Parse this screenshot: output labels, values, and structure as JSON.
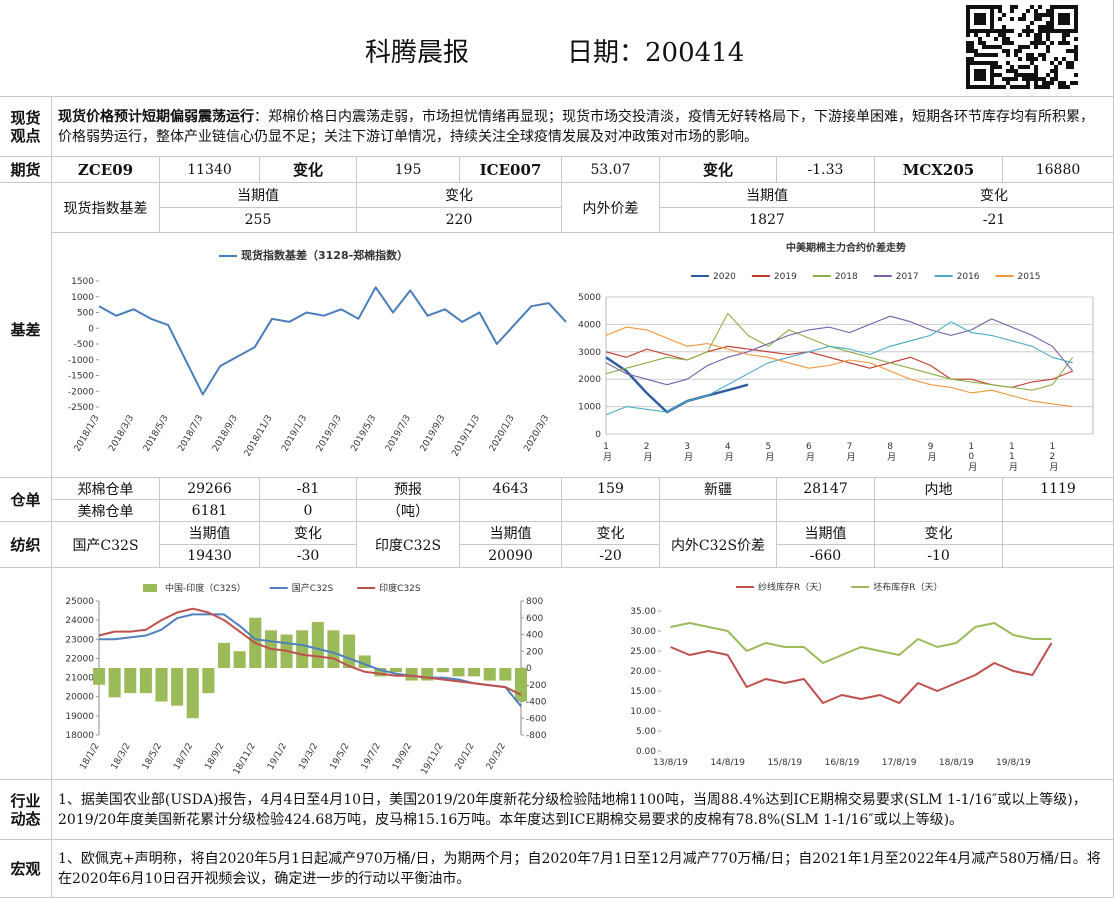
{
  "header": {
    "title": "科腾晨报",
    "date": "日期：200414"
  },
  "spot_view": {
    "label": "现货观点",
    "headline": "现货价格预计短期偏弱震荡运行",
    "text": "：郑棉价格日内震荡走弱，市场担忧情绪再显现；现货市场交投清淡，疫情无好转格局下，下游接单困难，短期各环节库存均有所积累，价格弱势运行，整体产业链信心仍显不足；关注下游订单情况，持续关注全球疫情发展及对冲政策对市场的影响。"
  },
  "futures": {
    "label": "期货",
    "cells": [
      "ZCE09",
      11340,
      "变化",
      195,
      "ICE007",
      53.07,
      "变化",
      -1.33,
      "MCX205",
      16880
    ]
  },
  "basis_table": {
    "label": "基差",
    "rows": [
      [
        "现货指数基差",
        "当期值",
        "变化",
        "内外价差",
        "当期值",
        "变化"
      ],
      [
        255,
        220,
        1827,
        -21
      ]
    ]
  },
  "warehouse": {
    "label": "仓单",
    "rows": [
      [
        "郑棉仓单",
        29266,
        -81,
        "预报",
        4643,
        159,
        "新疆",
        28147,
        "内地",
        1119
      ],
      [
        "美棉仓单",
        6181,
        0,
        "（吨）"
      ]
    ]
  },
  "textile": {
    "label": "纺织",
    "rows": [
      [
        "国产C32S",
        "当期值",
        "变化",
        "印度C32S",
        "当期值",
        "变化",
        "内外C32S价差",
        "当期值",
        "变化"
      ],
      [
        19430,
        -30,
        20090,
        -20,
        -660,
        -10
      ]
    ]
  },
  "industry": {
    "label": "行业动态",
    "text": "1、据美国农业部(USDA)报告，4月4日至4月10日，美国2019/20年度新花分级检验陆地棉1100吨，当周88.4%达到ICE期棉交易要求(SLM 1-1/16″或以上等级)，2019/20年度美国新花累计分级检验424.68万吨，皮马棉15.16万吨。本年度达到ICE期棉交易要求的皮棉有78.8%(SLM 1-1/16″或以上等级)。"
  },
  "macro": {
    "label": "宏观",
    "text": "1、欧佩克+声明称，将自2020年5月1日起减产970万桶/日，为期两个月；自2020年7月1日至12月减产770万桶/日；自2021年1月至2022年4月减产580万桶/日。将在2020年6月10日召开视频会议，确定进一步的行动以平衡油市。"
  },
  "chart_data": [
    {
      "type": "line",
      "legend": "top",
      "categories": [
        "2018/1/3",
        null,
        "2018/3/3",
        null,
        "2018/5/3",
        null,
        "2018/7/3",
        null,
        "2018/9/3",
        null,
        "2018/11/3",
        null,
        "2019/1/3",
        null,
        "2019/3/3",
        null,
        "2019/5/3",
        null,
        "2019/7/3",
        null,
        "2019/9/3",
        null,
        "2019/11/3",
        null,
        "2020/1/3",
        null,
        "2020/3/3",
        null
      ],
      "series": [
        {
          "name": "现货指数基差（3128-郑棉指数）",
          "color": "#4a7ebb",
          "values": [
            700,
            400,
            600,
            300,
            100,
            -1000,
            -2100,
            -1200,
            -900,
            -600,
            300,
            200,
            500,
            400,
            600,
            300,
            1300,
            500,
            1200,
            400,
            600,
            200,
            500,
            -500,
            100,
            700,
            800,
            200
          ]
        }
      ],
      "ylim": [
        -2500,
        1500
      ],
      "yticks": [
        -2500,
        -2000,
        -1500,
        -1000,
        -500,
        0,
        500,
        1000,
        1500
      ],
      "grid": false
    },
    {
      "type": "line",
      "title": "中美期棉主力合约价差走势",
      "legend": "top",
      "categories": [
        "1月",
        null,
        "2月",
        null,
        "3月",
        null,
        "4月",
        null,
        "5月",
        null,
        "6月",
        null,
        "7月",
        null,
        "8月",
        null,
        "9月",
        null,
        "10月",
        null,
        "11月",
        null,
        "12月",
        null
      ],
      "series": [
        {
          "name": "2020",
          "color": "#2e5e9e",
          "values": [
            2800,
            2300,
            1500,
            800,
            1200,
            1400,
            1600,
            1800,
            null,
            null,
            null,
            null,
            null,
            null,
            null,
            null,
            null,
            null,
            null,
            null,
            null,
            null,
            null,
            null
          ]
        },
        {
          "name": "2019",
          "color": "#c0392b",
          "values": [
            3000,
            2800,
            3100,
            2900,
            2700,
            3000,
            3200,
            3100,
            3000,
            2900,
            3000,
            2800,
            2600,
            2400,
            2600,
            2800,
            2500,
            2000,
            2000,
            1800,
            1700,
            1900,
            2000,
            2300
          ]
        },
        {
          "name": "2018",
          "color": "#8db04a",
          "values": [
            2200,
            2400,
            2600,
            2800,
            2700,
            3000,
            4400,
            3600,
            3200,
            3800,
            3500,
            3200,
            3000,
            2800,
            2600,
            2400,
            2200,
            2000,
            1900,
            1800,
            1700,
            1600,
            1800,
            2800
          ]
        },
        {
          "name": "2017",
          "color": "#7a5ca8",
          "values": [
            2600,
            2200,
            2000,
            1800,
            2000,
            2500,
            2800,
            3000,
            3300,
            3600,
            3800,
            3900,
            3700,
            4000,
            4300,
            4100,
            3800,
            3600,
            3800,
            4200,
            3900,
            3600,
            3200,
            2300
          ]
        },
        {
          "name": "2016",
          "color": "#4bacc6",
          "values": [
            700,
            1000,
            900,
            800,
            1200,
            1400,
            1800,
            2200,
            2600,
            2800,
            3000,
            3200,
            3100,
            2900,
            3200,
            3400,
            3600,
            4100,
            3700,
            3600,
            3400,
            3200,
            2800,
            2600
          ]
        },
        {
          "name": "2015",
          "color": "#f0953a",
          "values": [
            3600,
            3900,
            3800,
            3500,
            3200,
            3300,
            3100,
            2900,
            2800,
            2600,
            2400,
            2500,
            2700,
            2600,
            2300,
            2000,
            1800,
            1700,
            1500,
            1600,
            1400,
            1200,
            1100,
            1000
          ]
        }
      ],
      "ylim": [
        0,
        5000
      ],
      "yticks": [
        0,
        1000,
        2000,
        3000,
        4000,
        5000
      ],
      "grid": true
    },
    {
      "type": "combo",
      "legend": "top",
      "categories": [
        "18/1/2",
        null,
        "18/3/2",
        null,
        "18/5/2",
        null,
        "18/7/2",
        null,
        "18/9/2",
        null,
        "18/11/2",
        null,
        "19/1/2",
        null,
        "19/3/2",
        null,
        "19/5/2",
        null,
        "19/7/2",
        null,
        "19/9/2",
        null,
        "19/11/2",
        null,
        "20/1/2",
        null,
        "20/3/2",
        null
      ],
      "series": [
        {
          "name": "中国-印度（C32S）",
          "type": "bar",
          "axis": "y2",
          "color": "#9bbb59",
          "values": [
            -200,
            -350,
            -300,
            -300,
            -400,
            -450,
            -600,
            -300,
            300,
            200,
            600,
            450,
            400,
            450,
            550,
            450,
            400,
            150,
            -100,
            -50,
            -150,
            -150,
            -50,
            -100,
            -100,
            -150,
            -150,
            -400
          ]
        },
        {
          "name": "国产C32S",
          "type": "line",
          "color": "#4f81bd",
          "values": [
            23000,
            23000,
            23100,
            23200,
            23500,
            24100,
            24300,
            24300,
            24300,
            23700,
            23000,
            22900,
            22800,
            22700,
            22500,
            22300,
            22000,
            21700,
            21400,
            21200,
            21100,
            21000,
            21000,
            20900,
            20700,
            20600,
            20500,
            19500
          ]
        },
        {
          "name": "印度C32S",
          "type": "line",
          "color": "#c0504d",
          "values": [
            23200,
            23400,
            23400,
            23500,
            24000,
            24400,
            24600,
            24400,
            24000,
            23400,
            22800,
            22500,
            22400,
            22200,
            22100,
            22000,
            21600,
            21300,
            21200,
            21100,
            21100,
            21000,
            20900,
            20800,
            20700,
            20600,
            20500,
            20100
          ]
        }
      ],
      "ylim": [
        18000,
        25000
      ],
      "yticks": [
        18000,
        19000,
        20000,
        21000,
        22000,
        23000,
        24000,
        25000
      ],
      "y2lim": [
        -800,
        800
      ],
      "y2ticks": [
        -800,
        -600,
        -400,
        -200,
        0,
        200,
        400,
        600,
        800
      ],
      "grid": false
    },
    {
      "type": "line",
      "legend": "top",
      "categories": [
        "13/8/19",
        null,
        null,
        "14/8/19",
        null,
        null,
        "15/8/19",
        null,
        null,
        "16/8/19",
        null,
        null,
        "17/8/19",
        null,
        null,
        "18/8/19",
        null,
        null,
        "19/8/19",
        null,
        null
      ],
      "series": [
        {
          "name": "纱线库存R（天）",
          "color": "#c0504d",
          "values": [
            26,
            24,
            25,
            24,
            16,
            18,
            17,
            18,
            12,
            14,
            13,
            14,
            12,
            17,
            15,
            17,
            19,
            22,
            20,
            19,
            27
          ]
        },
        {
          "name": "坯布库存R（天）",
          "color": "#9bbb59",
          "values": [
            31,
            32,
            31,
            30,
            25,
            27,
            26,
            26,
            22,
            24,
            26,
            25,
            24,
            28,
            26,
            27,
            31,
            32,
            29,
            28,
            28
          ]
        }
      ],
      "ylim": [
        0,
        35
      ],
      "yticks": [
        {
          "value": 0,
          "label": "0.00"
        },
        {
          "value": 5,
          "label": "5.00"
        },
        {
          "value": 10,
          "label": "10.00"
        },
        {
          "value": 15,
          "label": "15.00"
        },
        {
          "value": 20,
          "label": "20.00"
        },
        {
          "value": 25,
          "label": "25.00"
        },
        {
          "value": 30,
          "label": "30.00"
        },
        {
          "value": 35,
          "label": "35.00"
        }
      ],
      "grid": false
    }
  ]
}
